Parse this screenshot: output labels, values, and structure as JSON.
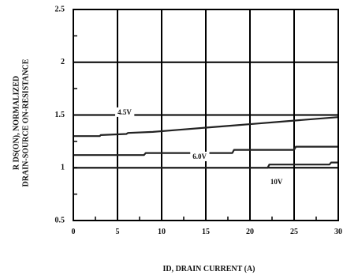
{
  "chart_data": {
    "type": "line",
    "title": "",
    "xlabel": "ID, DRAIN CURRENT (A)",
    "ylabel_lines": [
      "R DS(ON), NORMALIZED",
      "DRAIN-SOURCE ON-RESISTANCE"
    ],
    "xlim": [
      0,
      30
    ],
    "ylim": [
      0.5,
      2.5
    ],
    "xticks": [
      0,
      5,
      10,
      15,
      20,
      25,
      30
    ],
    "xtick_labels": [
      "0",
      "5",
      "10",
      "15",
      "20",
      "25",
      "30"
    ],
    "yticks": [
      0.5,
      1,
      1.5,
      2,
      2.5
    ],
    "ytick_labels": [
      "0.5",
      "1",
      "1.5",
      "2",
      "2.5"
    ],
    "grid": true,
    "gridlines_x": [
      5,
      10,
      15,
      20,
      25
    ],
    "gridlines_y": [
      1,
      1.5,
      2
    ],
    "colors": {
      "line": "#222222",
      "grid": "#000000",
      "background": "#ffffff"
    },
    "series": [
      {
        "name": "4.5V",
        "label_at": [
          5.8,
          1.52
        ],
        "x": [
          0,
          3,
          3.1,
          6,
          6.2,
          9,
          12,
          15,
          18,
          21,
          24,
          27,
          30
        ],
        "y": [
          1.3,
          1.3,
          1.31,
          1.32,
          1.33,
          1.34,
          1.36,
          1.38,
          1.4,
          1.42,
          1.44,
          1.46,
          1.48
        ]
      },
      {
        "name": "6.0V",
        "label_at": [
          14.3,
          1.1
        ],
        "x": [
          0,
          8,
          8.2,
          18,
          18.2,
          25,
          25.2,
          30
        ],
        "y": [
          1.12,
          1.12,
          1.14,
          1.14,
          1.17,
          1.17,
          1.2,
          1.2
        ]
      },
      {
        "name": "10V",
        "label_at": [
          23,
          0.86
        ],
        "x": [
          0,
          22,
          22.2,
          29,
          29.2,
          30
        ],
        "y": [
          1.0,
          1.0,
          1.03,
          1.03,
          1.05,
          1.05
        ]
      }
    ]
  }
}
